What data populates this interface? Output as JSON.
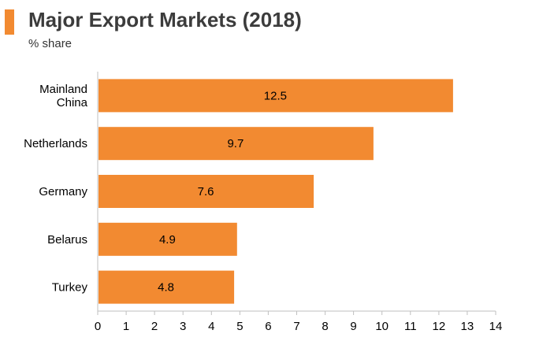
{
  "header": {
    "title": "Major Export Markets (2018)",
    "subtitle": "% share"
  },
  "colors": {
    "accent": "#f28a31",
    "bar": "#f28a31",
    "axis": "#bfbfbf",
    "text": "#000000"
  },
  "chart_data": {
    "type": "bar",
    "orientation": "horizontal",
    "title": "Major Export Markets (2018)",
    "subtitle": "% share",
    "xlabel": "",
    "ylabel": "",
    "categories": [
      [
        "Mainland",
        "China"
      ],
      [
        "Netherlands"
      ],
      [
        "Germany"
      ],
      [
        "Belarus"
      ],
      [
        "Turkey"
      ]
    ],
    "values": [
      12.5,
      9.7,
      7.6,
      4.9,
      4.8
    ],
    "value_labels": [
      "12.5",
      "9.7",
      "7.6",
      "4.9",
      "4.8"
    ],
    "xlim": [
      0,
      14
    ],
    "ticks": [
      "0",
      "1",
      "2",
      "3",
      "4",
      "5",
      "6",
      "7",
      "8",
      "9",
      "10",
      "11",
      "12",
      "13",
      "14"
    ],
    "grid": false,
    "legend": "none"
  }
}
